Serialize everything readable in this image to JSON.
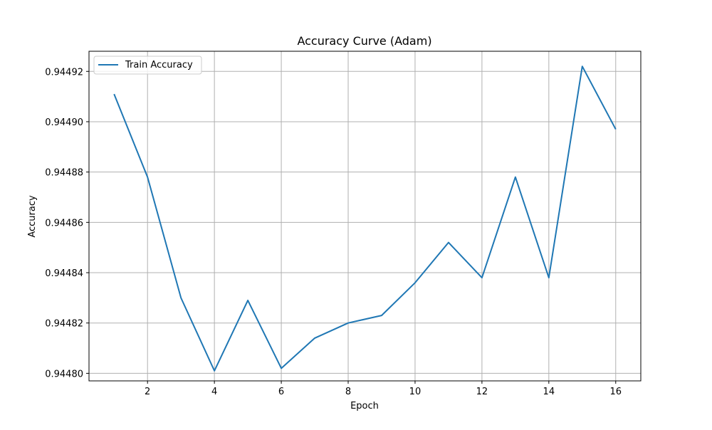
{
  "chart_data": {
    "type": "line",
    "title": "Accuracy Curve (Adam)",
    "xlabel": "Epoch",
    "ylabel": "Accuracy",
    "xlim": [
      0.25,
      16.75
    ],
    "ylim": [
      0.944797,
      0.944928
    ],
    "x_ticks": [
      2,
      4,
      6,
      8,
      10,
      12,
      14,
      16
    ],
    "y_ticks": [
      0.9448,
      0.94482,
      0.94484,
      0.94486,
      0.94488,
      0.9449,
      0.94492
    ],
    "x_tick_labels": [
      "2",
      "4",
      "6",
      "8",
      "10",
      "12",
      "14",
      "16"
    ],
    "y_tick_labels": [
      "0.94480",
      "0.94482",
      "0.94484",
      "0.94486",
      "0.94488",
      "0.94490",
      "0.94492"
    ],
    "grid": true,
    "legend_position": "top-left",
    "series": [
      {
        "name": "Train Accuracy",
        "color": "#1f77b4",
        "x": [
          1,
          2,
          3,
          4,
          5,
          6,
          7,
          8,
          9,
          10,
          11,
          12,
          13,
          14,
          15,
          16
        ],
        "values": [
          0.944911,
          0.944878,
          0.94483,
          0.944801,
          0.944829,
          0.944802,
          0.944814,
          0.94482,
          0.944823,
          0.944836,
          0.944852,
          0.944838,
          0.944878,
          0.944838,
          0.944922,
          0.944897
        ]
      }
    ]
  }
}
